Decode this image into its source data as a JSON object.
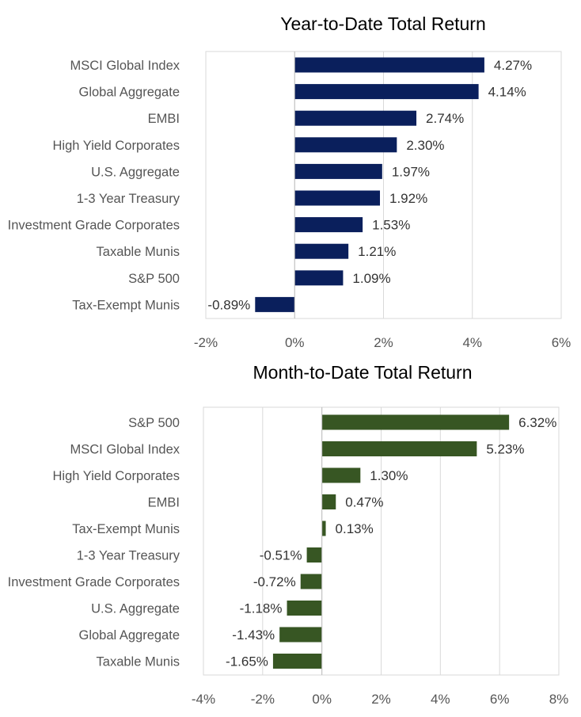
{
  "chart_data": [
    {
      "type": "bar",
      "orientation": "horizontal",
      "title": "Year-to-Date Total Return",
      "categories": [
        "MSCI Global Index",
        "Global Aggregate",
        "EMBI",
        "High Yield Corporates",
        "U.S. Aggregate",
        "1-3 Year Treasury",
        "Investment Grade Corporates",
        "Taxable Munis",
        "S&P 500",
        "Tax-Exempt Munis"
      ],
      "values": [
        4.27,
        4.14,
        2.74,
        2.3,
        1.97,
        1.92,
        1.53,
        1.21,
        1.09,
        -0.89
      ],
      "value_labels": [
        "4.27%",
        "4.14%",
        "2.74%",
        "2.30%",
        "1.97%",
        "1.92%",
        "1.53%",
        "1.21%",
        "1.09%",
        "-0.89%"
      ],
      "xlim": [
        -2,
        6
      ],
      "ticks": [
        -2,
        0,
        2,
        4,
        6
      ],
      "tick_labels": [
        "-2%",
        "0%",
        "2%",
        "4%",
        "6%"
      ],
      "color": "#0a1f5c",
      "grid": true,
      "legend": "none"
    },
    {
      "type": "bar",
      "orientation": "horizontal",
      "title": "Month-to-Date Total Return",
      "categories": [
        "S&P 500",
        "MSCI Global Index",
        "High Yield Corporates",
        "EMBI",
        "Tax-Exempt Munis",
        "1-3 Year Treasury",
        "Investment Grade Corporates",
        "U.S. Aggregate",
        "Global Aggregate",
        "Taxable Munis"
      ],
      "values": [
        6.32,
        5.23,
        1.3,
        0.47,
        0.13,
        -0.51,
        -0.72,
        -1.18,
        -1.43,
        -1.65
      ],
      "value_labels": [
        "6.32%",
        "5.23%",
        "1.30%",
        "0.47%",
        "0.13%",
        "-0.51%",
        "-0.72%",
        "-1.18%",
        "-1.43%",
        "-1.65%"
      ],
      "xlim": [
        -4,
        8
      ],
      "ticks": [
        -4,
        -2,
        0,
        2,
        4,
        6,
        8
      ],
      "tick_labels": [
        "-4%",
        "-2%",
        "0%",
        "2%",
        "4%",
        "6%",
        "8%"
      ],
      "color": "#375623",
      "grid": true,
      "legend": "none"
    }
  ]
}
